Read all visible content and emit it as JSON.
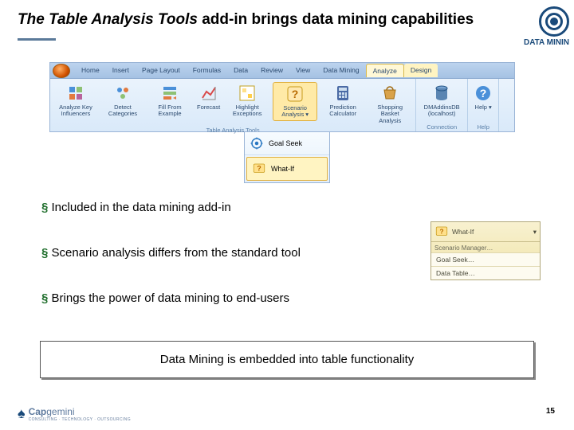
{
  "title_part1": "The ",
  "title_italic": "Table Analysis Tools",
  "title_part2": " add-in brings data mining capabilities",
  "badge_text": "DATA MININ",
  "ribbon": {
    "tabs": [
      {
        "label": "Home",
        "active": false,
        "hl": false
      },
      {
        "label": "Insert",
        "active": false,
        "hl": false
      },
      {
        "label": "Page Layout",
        "active": false,
        "hl": false
      },
      {
        "label": "Formulas",
        "active": false,
        "hl": false
      },
      {
        "label": "Data",
        "active": false,
        "hl": false
      },
      {
        "label": "Review",
        "active": false,
        "hl": false
      },
      {
        "label": "View",
        "active": false,
        "hl": false
      },
      {
        "label": "Data Mining",
        "active": false,
        "hl": false
      },
      {
        "label": "Analyze",
        "active": true,
        "hl": true
      },
      {
        "label": "Design",
        "active": false,
        "hl": true
      }
    ],
    "groups": [
      {
        "name": "Table Analysis Tools",
        "items": [
          {
            "label": "Analyze Key Influencers",
            "icon": "influencers",
            "active": false
          },
          {
            "label": "Detect Categories",
            "icon": "categories",
            "active": false
          },
          {
            "label": "Fill From Example",
            "icon": "fill",
            "active": false
          },
          {
            "label": "Forecast",
            "icon": "forecast",
            "active": false
          },
          {
            "label": "Highlight Exceptions",
            "icon": "exceptions",
            "active": false
          },
          {
            "label": "Scenario Analysis ▾",
            "icon": "scenario",
            "active": true
          },
          {
            "label": "Prediction Calculator",
            "icon": "calc",
            "active": false
          },
          {
            "label": "Shopping Basket Analysis",
            "icon": "basket",
            "active": false
          }
        ]
      },
      {
        "name": "Connection",
        "items": [
          {
            "label": "DMAddinsDB (localhost)",
            "icon": "db",
            "active": false
          }
        ]
      },
      {
        "name": "Help",
        "items": [
          {
            "label": "Help ▾",
            "icon": "help",
            "active": false
          }
        ]
      }
    ]
  },
  "dropdown": [
    {
      "label": "Goal Seek",
      "icon": "goal"
    },
    {
      "label": "What-If",
      "icon": "whatif"
    }
  ],
  "bullets": [
    "Included in the data mining add-in",
    "Scenario analysis differs from the standard tool",
    "Brings the power of data mining to end-users"
  ],
  "whatif": {
    "head": "What-If",
    "title": "Scenario Manager…",
    "rows": [
      "Goal Seek…",
      "Data Table…"
    ]
  },
  "callout": "Data Mining is embedded into table functionality",
  "footer_logo_1": "Cap",
  "footer_logo_2": "gemini",
  "footer_sub": "CONSULTING · TECHNOLOGY · OUTSOURCING",
  "page_no": "15",
  "colors": {
    "accent": "#1a4a7a",
    "ribbon_bg": "#e3effa",
    "highlight": "#fff4c2"
  }
}
